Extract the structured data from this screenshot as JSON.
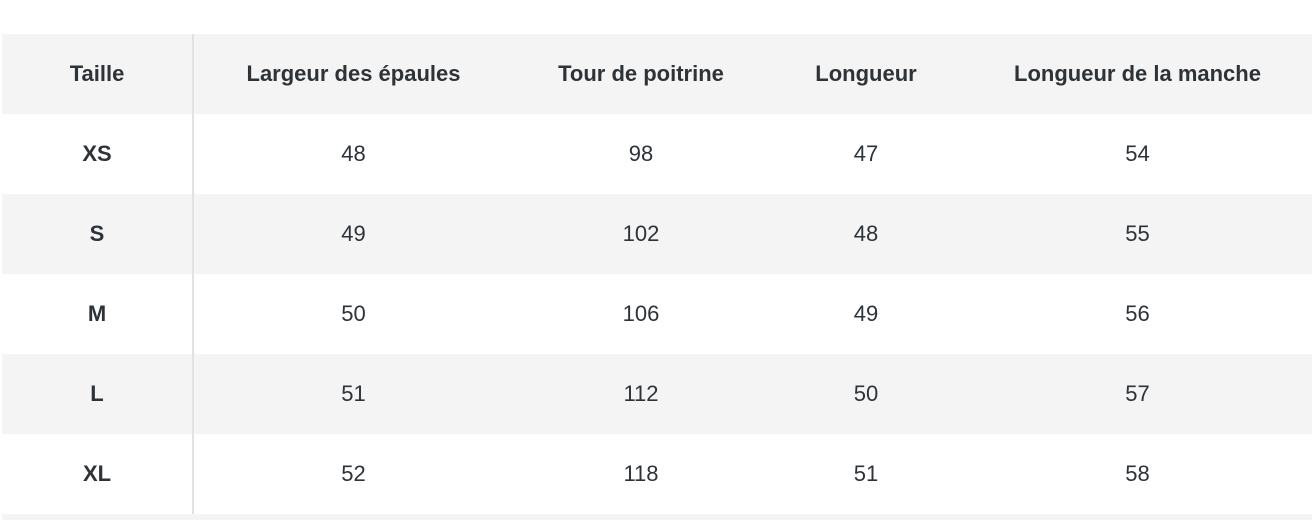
{
  "size_chart": {
    "headers": [
      "Taille",
      "Largeur des épaules",
      "Tour de poitrine",
      "Longueur",
      "Longueur de la manche"
    ],
    "rows": [
      [
        "XS",
        "48",
        "98",
        "47",
        "54"
      ],
      [
        "S",
        "49",
        "102",
        "48",
        "55"
      ],
      [
        "M",
        "50",
        "106",
        "49",
        "56"
      ],
      [
        "L",
        "51",
        "112",
        "50",
        "57"
      ],
      [
        "XL",
        "52",
        "118",
        "51",
        "58"
      ]
    ]
  }
}
